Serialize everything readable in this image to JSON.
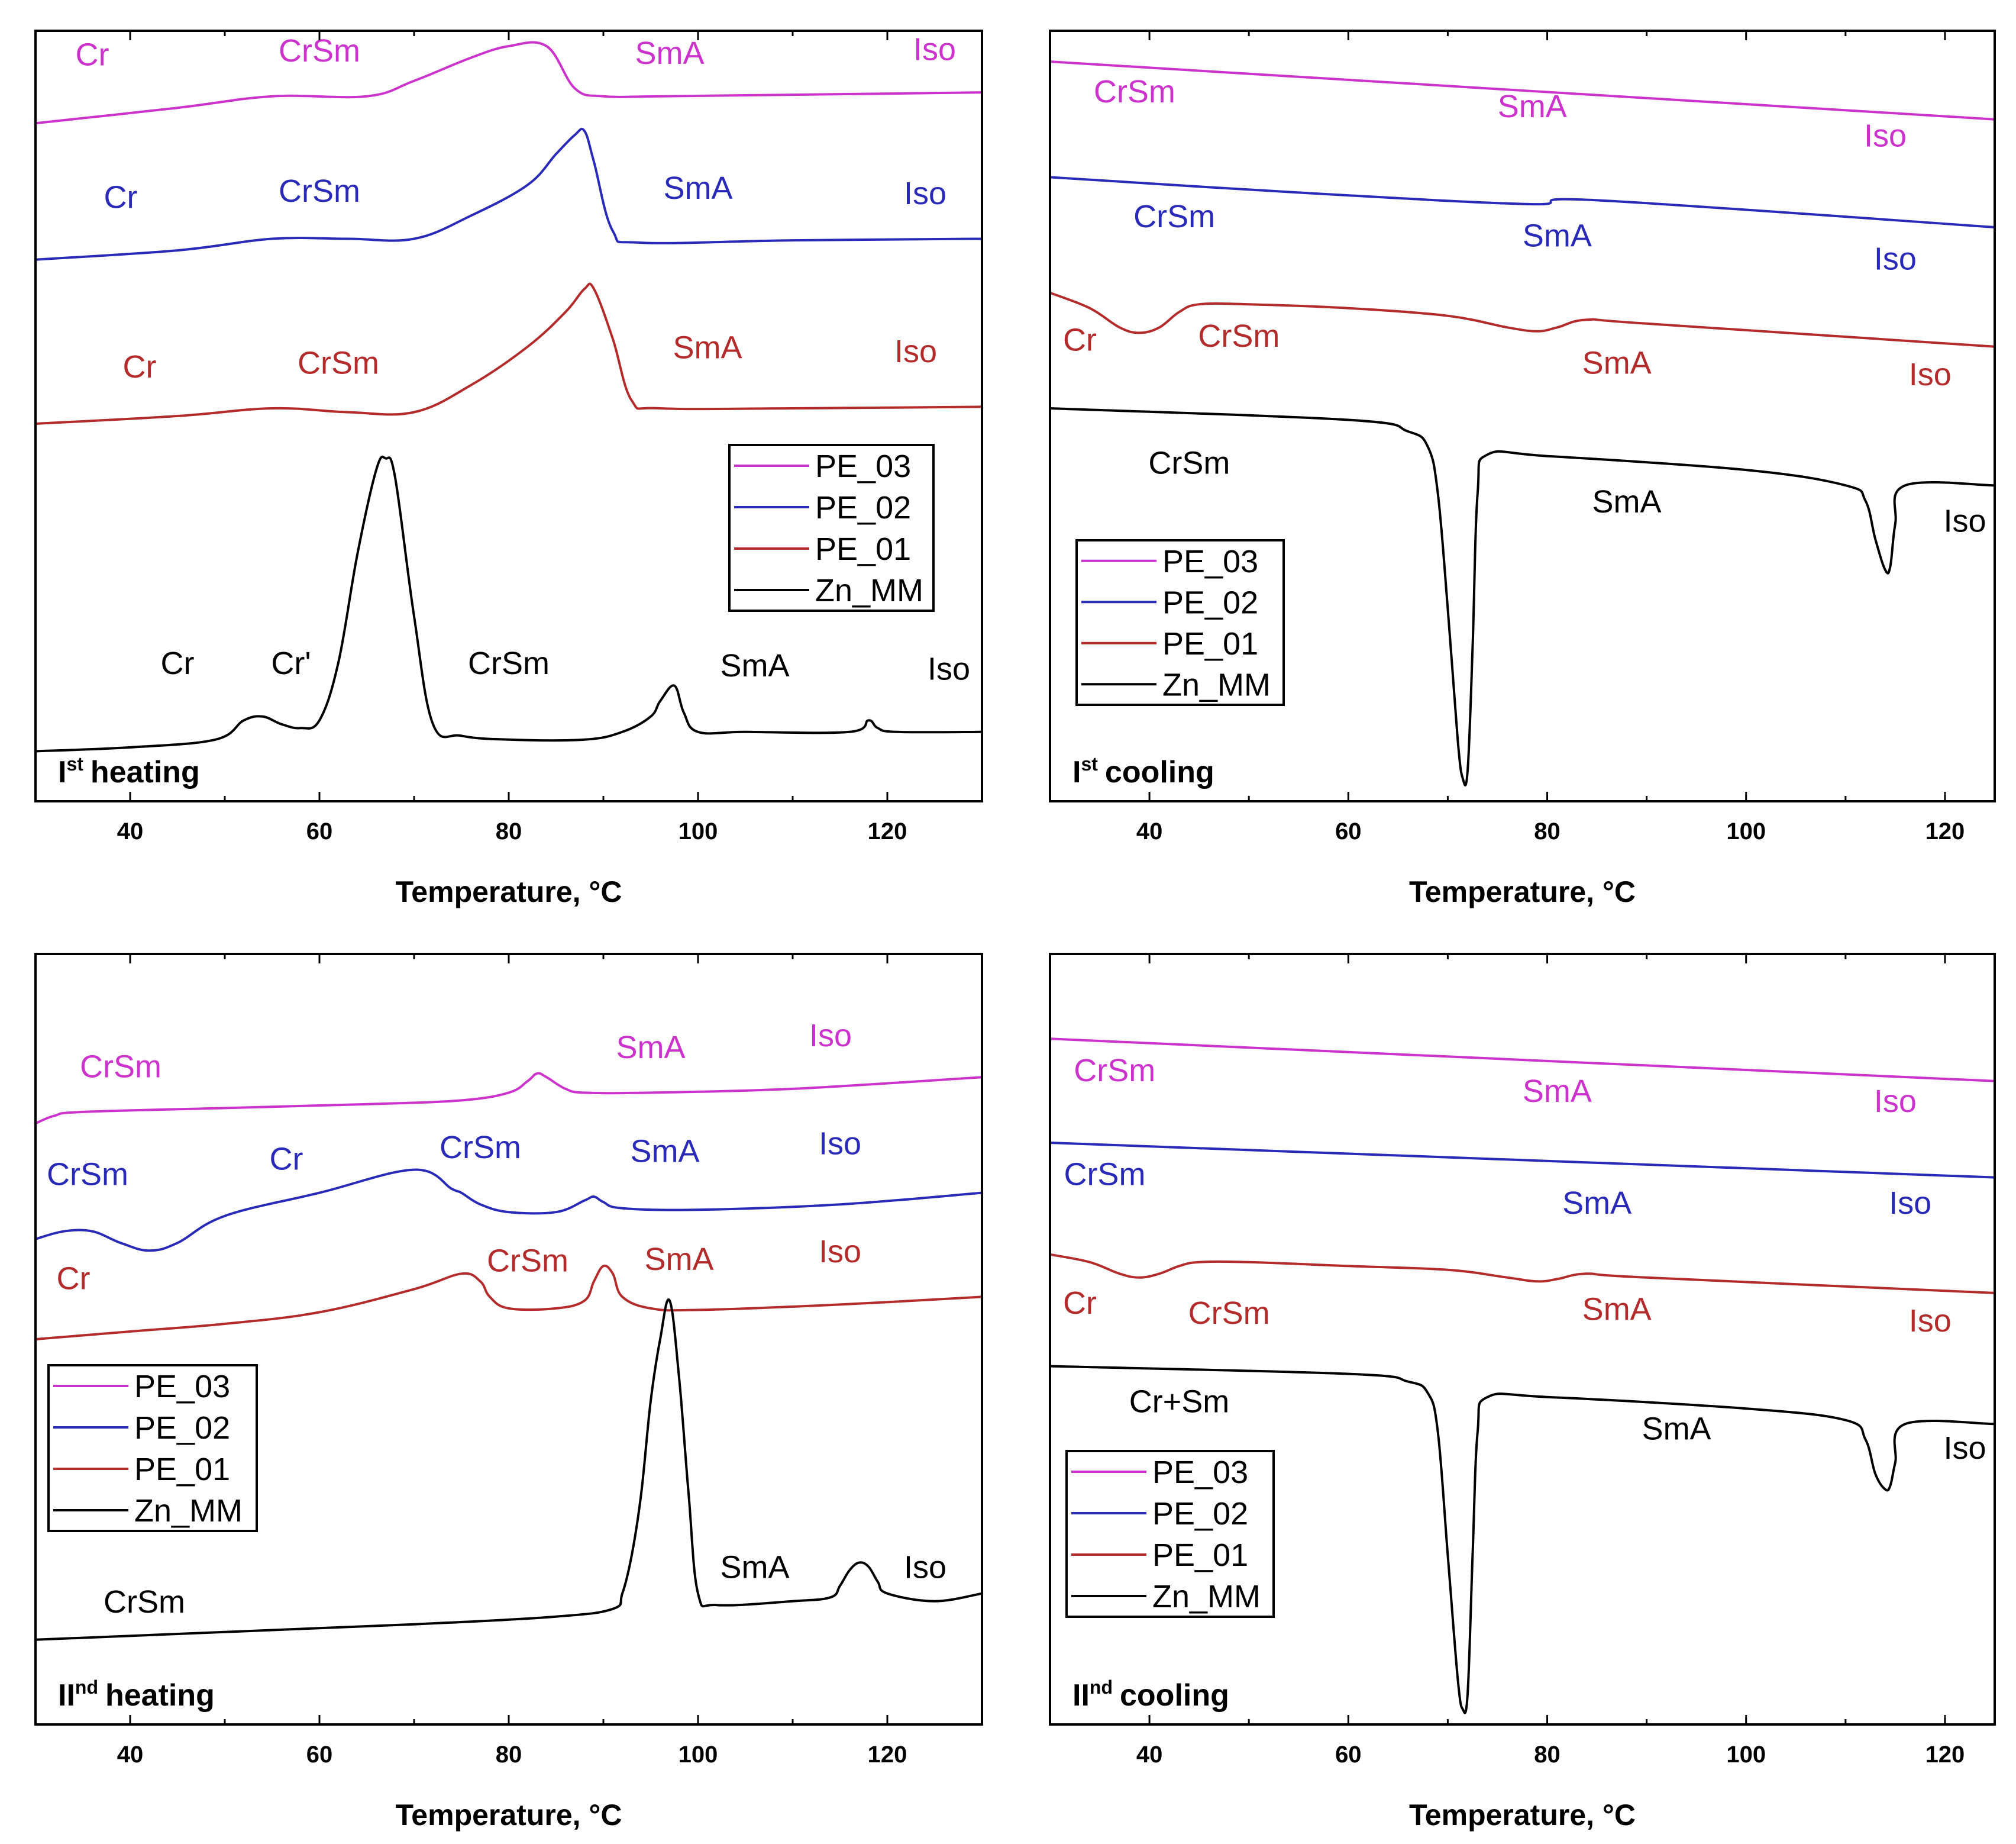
{
  "colors": {
    "PE_03": "#cc33cc",
    "PE_02": "#2a2ab8",
    "PE_01": "#b32b2b",
    "Zn_MM": "#000000"
  },
  "chart_data": [
    {
      "id": "p1",
      "type": "line",
      "title": "",
      "stage_prefix": "I",
      "stage_sup": "st",
      "stage_word": "heating",
      "xlabel": "Temperature, °C",
      "ylabel": "",
      "xlim": [
        30,
        130
      ],
      "xticks": [
        40,
        60,
        80,
        100,
        120
      ],
      "legend": [
        "PE_03",
        "PE_02",
        "PE_01",
        "Zn_MM"
      ],
      "legend_pos": "right",
      "series": [
        {
          "name": "PE_03",
          "x": [
            30,
            45,
            55,
            65,
            70,
            76,
            80,
            84,
            87,
            90,
            96,
            110,
            130
          ],
          "y": [
            0.88,
            0.9,
            0.915,
            0.915,
            0.935,
            0.965,
            0.98,
            0.98,
            0.925,
            0.915,
            0.915,
            0.917,
            0.92
          ]
        },
        {
          "name": "PE_02",
          "x": [
            30,
            45,
            55,
            63,
            70,
            76,
            82,
            85,
            87,
            88,
            89,
            91,
            94,
            110,
            130
          ],
          "y": [
            0.703,
            0.715,
            0.73,
            0.73,
            0.73,
            0.76,
            0.8,
            0.84,
            0.865,
            0.87,
            0.83,
            0.74,
            0.725,
            0.728,
            0.73
          ]
        },
        {
          "name": "PE_01",
          "x": [
            30,
            45,
            55,
            63,
            70,
            76,
            82,
            86,
            88,
            89,
            91,
            93,
            96,
            110,
            130
          ],
          "y": [
            0.49,
            0.5,
            0.51,
            0.505,
            0.505,
            0.54,
            0.59,
            0.635,
            0.665,
            0.665,
            0.6,
            0.52,
            0.51,
            0.51,
            0.512
          ]
        },
        {
          "name": "Zn_MM",
          "x": [
            30,
            40,
            49,
            52,
            54,
            56,
            58,
            60,
            62,
            64,
            66,
            67,
            68,
            70,
            72,
            75,
            80,
            88,
            92,
            95,
            96,
            97.5,
            98.5,
            100,
            105,
            116,
            118,
            119,
            121,
            130
          ],
          "y": [
            0.065,
            0.07,
            0.08,
            0.105,
            0.11,
            0.1,
            0.095,
            0.105,
            0.18,
            0.32,
            0.43,
            0.445,
            0.42,
            0.24,
            0.1,
            0.085,
            0.08,
            0.08,
            0.09,
            0.11,
            0.13,
            0.15,
            0.115,
            0.09,
            0.09,
            0.09,
            0.105,
            0.095,
            0.09,
            0.09
          ]
        }
      ],
      "labels": [
        {
          "text": "Cr",
          "series": "PE_03",
          "x": 36,
          "y": 0.955
        },
        {
          "text": "CrSm",
          "series": "PE_03",
          "x": 60,
          "y": 0.96
        },
        {
          "text": "SmA",
          "series": "PE_03",
          "x": 97,
          "y": 0.957
        },
        {
          "text": "Iso",
          "series": "PE_03",
          "x": 125,
          "y": 0.962
        },
        {
          "text": "Cr",
          "series": "PE_02",
          "x": 39,
          "y": 0.77
        },
        {
          "text": "CrSm",
          "series": "PE_02",
          "x": 60,
          "y": 0.778
        },
        {
          "text": "SmA",
          "series": "PE_02",
          "x": 100,
          "y": 0.782
        },
        {
          "text": "Iso",
          "series": "PE_02",
          "x": 124,
          "y": 0.775
        },
        {
          "text": "Cr",
          "series": "PE_01",
          "x": 41,
          "y": 0.55
        },
        {
          "text": "CrSm",
          "series": "PE_01",
          "x": 62,
          "y": 0.555
        },
        {
          "text": "SmA",
          "series": "PE_01",
          "x": 101,
          "y": 0.575
        },
        {
          "text": "Iso",
          "series": "PE_01",
          "x": 123,
          "y": 0.57
        },
        {
          "text": "Cr",
          "series": "Zn_MM",
          "x": 45,
          "y": 0.165
        },
        {
          "text": "Cr'",
          "series": "Zn_MM",
          "x": 57,
          "y": 0.165
        },
        {
          "text": "CrSm",
          "series": "Zn_MM",
          "x": 80,
          "y": 0.165
        },
        {
          "text": "SmA",
          "series": "Zn_MM",
          "x": 106,
          "y": 0.162
        },
        {
          "text": "Iso",
          "series": "Zn_MM",
          "x": 126.5,
          "y": 0.158
        }
      ]
    },
    {
      "id": "p2",
      "type": "line",
      "title": "",
      "stage_prefix": "I",
      "stage_sup": "st",
      "stage_word": "cooling",
      "xlabel": "Temperature, °C",
      "ylabel": "",
      "xlim": [
        30,
        125
      ],
      "xticks": [
        40,
        60,
        80,
        100,
        120
      ],
      "legend": [
        "PE_03",
        "PE_02",
        "PE_01",
        "Zn_MM"
      ],
      "legend_pos": "left",
      "series": [
        {
          "name": "PE_03",
          "x": [
            30,
            125
          ],
          "y": [
            0.96,
            0.885
          ]
        },
        {
          "name": "PE_02",
          "x": [
            30,
            55,
            78,
            85,
            125
          ],
          "y": [
            0.81,
            0.79,
            0.775,
            0.78,
            0.745
          ]
        },
        {
          "name": "PE_01",
          "x": [
            30,
            34,
            37,
            39,
            41,
            43,
            45,
            50,
            60,
            70,
            76,
            79,
            81,
            84,
            90,
            125
          ],
          "y": [
            0.66,
            0.64,
            0.615,
            0.608,
            0.615,
            0.635,
            0.645,
            0.645,
            0.64,
            0.63,
            0.615,
            0.61,
            0.615,
            0.625,
            0.62,
            0.59
          ]
        },
        {
          "name": "Zn_MM",
          "x": [
            30,
            60,
            66,
            68,
            69,
            70,
            71,
            71.5,
            72,
            72.5,
            73,
            74,
            80,
            100,
            110,
            112,
            113,
            114,
            114.5,
            115,
            116,
            125
          ],
          "y": [
            0.51,
            0.495,
            0.48,
            0.46,
            0.4,
            0.25,
            0.08,
            0.03,
            0.04,
            0.2,
            0.4,
            0.45,
            0.448,
            0.43,
            0.41,
            0.39,
            0.34,
            0.3,
            0.305,
            0.36,
            0.41,
            0.41
          ]
        }
      ],
      "labels": [
        {
          "text": "CrSm",
          "series": "PE_03",
          "x": 38.5,
          "y": 0.907
        },
        {
          "text": "SmA",
          "series": "PE_03",
          "x": 78.5,
          "y": 0.888
        },
        {
          "text": "Iso",
          "series": "PE_03",
          "x": 114,
          "y": 0.85
        },
        {
          "text": "CrSm",
          "series": "PE_02",
          "x": 42.5,
          "y": 0.745
        },
        {
          "text": "SmA",
          "series": "PE_02",
          "x": 81,
          "y": 0.72
        },
        {
          "text": "Iso",
          "series": "PE_02",
          "x": 115,
          "y": 0.69
        },
        {
          "text": "Cr",
          "series": "PE_01",
          "x": 33,
          "y": 0.585
        },
        {
          "text": "CrSm",
          "series": "PE_01",
          "x": 49,
          "y": 0.59
        },
        {
          "text": "SmA",
          "series": "PE_01",
          "x": 87,
          "y": 0.555
        },
        {
          "text": "Iso",
          "series": "PE_01",
          "x": 118.5,
          "y": 0.54
        },
        {
          "text": "CrSm",
          "series": "Zn_MM",
          "x": 44,
          "y": 0.425
        },
        {
          "text": "SmA",
          "series": "Zn_MM",
          "x": 88,
          "y": 0.375
        },
        {
          "text": "Iso",
          "series": "Zn_MM",
          "x": 122,
          "y": 0.35
        }
      ]
    },
    {
      "id": "p3",
      "type": "line",
      "title": "",
      "stage_prefix": "II",
      "stage_sup": "nd",
      "stage_word": "heating",
      "xlabel": "Temperature, °C",
      "ylabel": "",
      "xlim": [
        30,
        130
      ],
      "xticks": [
        40,
        60,
        80,
        100,
        120
      ],
      "legend": [
        "PE_03",
        "PE_02",
        "PE_01",
        "Zn_MM"
      ],
      "legend_pos": "left",
      "series": [
        {
          "name": "PE_03",
          "x": [
            30,
            32,
            35,
            50,
            65,
            75,
            80,
            82,
            83,
            84,
            86,
            88,
            95,
            110,
            130
          ],
          "y": [
            0.78,
            0.79,
            0.795,
            0.8,
            0.805,
            0.81,
            0.82,
            0.835,
            0.845,
            0.84,
            0.825,
            0.82,
            0.82,
            0.825,
            0.84
          ]
        },
        {
          "name": "PE_02",
          "x": [
            30,
            33,
            36,
            39,
            42,
            45,
            50,
            60,
            70,
            74,
            75,
            77,
            80,
            85,
            88,
            89,
            90,
            92,
            100,
            115,
            130
          ],
          "y": [
            0.63,
            0.64,
            0.64,
            0.625,
            0.615,
            0.625,
            0.66,
            0.69,
            0.72,
            0.695,
            0.69,
            0.675,
            0.665,
            0.665,
            0.68,
            0.685,
            0.678,
            0.67,
            0.668,
            0.675,
            0.69
          ]
        },
        {
          "name": "PE_01",
          "x": [
            30,
            40,
            50,
            60,
            70,
            75,
            77,
            78,
            80,
            85,
            88,
            89,
            90,
            91,
            92,
            95,
            100,
            115,
            130
          ],
          "y": [
            0.5,
            0.51,
            0.52,
            0.535,
            0.565,
            0.585,
            0.575,
            0.555,
            0.54,
            0.54,
            0.55,
            0.575,
            0.595,
            0.585,
            0.555,
            0.54,
            0.538,
            0.545,
            0.555
          ]
        },
        {
          "name": "Zn_MM",
          "x": [
            30,
            50,
            70,
            85,
            91,
            92,
            93,
            94,
            95,
            96,
            97,
            98,
            99,
            100,
            102,
            110,
            114,
            115,
            116,
            117,
            118,
            119,
            120,
            125,
            130
          ],
          "y": [
            0.11,
            0.12,
            0.13,
            0.14,
            0.15,
            0.17,
            0.22,
            0.3,
            0.42,
            0.5,
            0.55,
            0.45,
            0.3,
            0.17,
            0.155,
            0.16,
            0.165,
            0.18,
            0.2,
            0.21,
            0.205,
            0.185,
            0.17,
            0.16,
            0.17
          ]
        }
      ],
      "labels": [
        {
          "text": "CrSm",
          "series": "PE_03",
          "x": 39,
          "y": 0.84
        },
        {
          "text": "SmA",
          "series": "PE_03",
          "x": 95,
          "y": 0.865
        },
        {
          "text": "Iso",
          "series": "PE_03",
          "x": 114,
          "y": 0.88
        },
        {
          "text": "CrSm",
          "series": "PE_02",
          "x": 35.5,
          "y": 0.7
        },
        {
          "text": "Cr",
          "series": "PE_02",
          "x": 56.5,
          "y": 0.72
        },
        {
          "text": "CrSm",
          "series": "PE_02",
          "x": 77,
          "y": 0.735
        },
        {
          "text": "SmA",
          "series": "PE_02",
          "x": 96.5,
          "y": 0.73
        },
        {
          "text": "Iso",
          "series": "PE_02",
          "x": 115,
          "y": 0.74
        },
        {
          "text": "Cr",
          "series": "PE_01",
          "x": 34,
          "y": 0.565
        },
        {
          "text": "CrSm",
          "series": "PE_01",
          "x": 82,
          "y": 0.588
        },
        {
          "text": "SmA",
          "series": "PE_01",
          "x": 98,
          "y": 0.59
        },
        {
          "text": "Iso",
          "series": "PE_01",
          "x": 115,
          "y": 0.6
        },
        {
          "text": "CrSm",
          "series": "Zn_MM",
          "x": 41.5,
          "y": 0.145
        },
        {
          "text": "SmA",
          "series": "Zn_MM",
          "x": 106,
          "y": 0.19
        },
        {
          "text": "Iso",
          "series": "Zn_MM",
          "x": 124,
          "y": 0.19
        }
      ]
    },
    {
      "id": "p4",
      "type": "line",
      "title": "",
      "stage_prefix": "II",
      "stage_sup": "nd",
      "stage_word": "cooling",
      "xlabel": "Temperature, °C",
      "ylabel": "",
      "xlim": [
        30,
        125
      ],
      "xticks": [
        40,
        60,
        80,
        100,
        120
      ],
      "legend": [
        "PE_03",
        "PE_02",
        "PE_01",
        "Zn_MM"
      ],
      "legend_pos": "left",
      "series": [
        {
          "name": "PE_03",
          "x": [
            30,
            125
          ],
          "y": [
            0.89,
            0.835
          ]
        },
        {
          "name": "PE_02",
          "x": [
            30,
            125
          ],
          "y": [
            0.755,
            0.71
          ]
        },
        {
          "name": "PE_01",
          "x": [
            30,
            34,
            37,
            39,
            41,
            43,
            45,
            50,
            60,
            70,
            76,
            79,
            81,
            84,
            90,
            125
          ],
          "y": [
            0.61,
            0.6,
            0.585,
            0.58,
            0.585,
            0.595,
            0.6,
            0.6,
            0.595,
            0.59,
            0.58,
            0.575,
            0.578,
            0.585,
            0.58,
            0.56
          ]
        },
        {
          "name": "Zn_MM",
          "x": [
            30,
            60,
            66,
            68,
            69,
            70,
            71,
            71.5,
            72,
            72.5,
            73,
            74,
            80,
            100,
            110,
            112,
            113,
            114,
            114.5,
            115,
            116,
            125
          ],
          "y": [
            0.465,
            0.455,
            0.445,
            0.43,
            0.38,
            0.22,
            0.06,
            0.02,
            0.04,
            0.22,
            0.38,
            0.425,
            0.425,
            0.41,
            0.395,
            0.37,
            0.325,
            0.305,
            0.31,
            0.34,
            0.39,
            0.39
          ]
        }
      ],
      "labels": [
        {
          "text": "CrSm",
          "series": "PE_03",
          "x": 36.5,
          "y": 0.835
        },
        {
          "text": "SmA",
          "series": "PE_03",
          "x": 81,
          "y": 0.808
        },
        {
          "text": "Iso",
          "series": "PE_03",
          "x": 115,
          "y": 0.795
        },
        {
          "text": "CrSm",
          "series": "PE_02",
          "x": 35.5,
          "y": 0.7
        },
        {
          "text": "SmA",
          "series": "PE_02",
          "x": 85,
          "y": 0.663
        },
        {
          "text": "Iso",
          "series": "PE_02",
          "x": 116.5,
          "y": 0.663
        },
        {
          "text": "Cr",
          "series": "PE_01",
          "x": 33,
          "y": 0.533
        },
        {
          "text": "CrSm",
          "series": "PE_01",
          "x": 48,
          "y": 0.52
        },
        {
          "text": "SmA",
          "series": "PE_01",
          "x": 87,
          "y": 0.525
        },
        {
          "text": "Iso",
          "series": "PE_01",
          "x": 118.5,
          "y": 0.51
        },
        {
          "text": "Cr+Sm",
          "series": "Zn_MM",
          "x": 43,
          "y": 0.405
        },
        {
          "text": "SmA",
          "series": "Zn_MM",
          "x": 93,
          "y": 0.37
        },
        {
          "text": "Iso",
          "series": "Zn_MM",
          "x": 122,
          "y": 0.345
        }
      ]
    }
  ]
}
